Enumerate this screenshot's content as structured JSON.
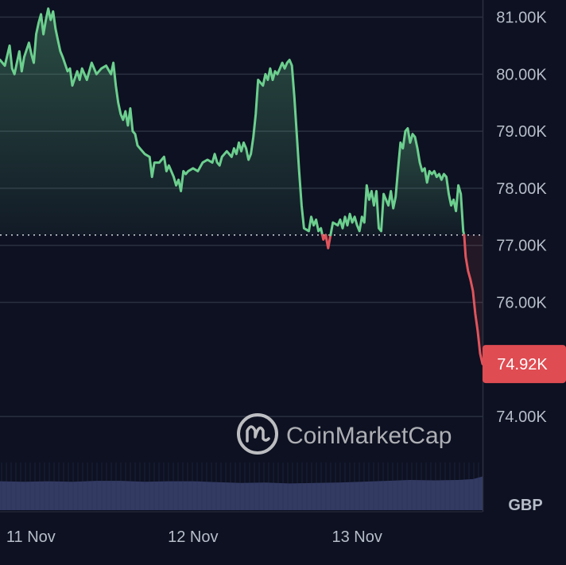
{
  "chart_data": {
    "type": "area",
    "currency": "GBP",
    "watermark": "CoinMarketCap",
    "y_tick_labels": [
      "81.00K",
      "80.00K",
      "79.00K",
      "78.00K",
      "77.00K",
      "76.00K",
      "74.00K"
    ],
    "y_tick_values": [
      81000,
      80000,
      79000,
      78000,
      77000,
      76000,
      74000
    ],
    "x_tick_labels": [
      "11 Nov",
      "12 Nov",
      "13 Nov"
    ],
    "ylim": [
      73500,
      81300
    ],
    "baseline": 77180,
    "current_price": 74920,
    "current_price_label": "74.92K",
    "colors": {
      "up": "#6ccf8e",
      "down": "#e0545c",
      "background": "#0d1121",
      "grid": "#2b3040",
      "volume": "#333b63",
      "price_tag": "#df4c52"
    },
    "price_series": {
      "name": "",
      "points": [
        [
          0.0,
          80250
        ],
        [
          0.01,
          80150
        ],
        [
          0.02,
          80500
        ],
        [
          0.025,
          80100
        ],
        [
          0.03,
          80000
        ],
        [
          0.04,
          80400
        ],
        [
          0.045,
          80050
        ],
        [
          0.05,
          80300
        ],
        [
          0.06,
          80550
        ],
        [
          0.065,
          80350
        ],
        [
          0.07,
          80200
        ],
        [
          0.075,
          80700
        ],
        [
          0.08,
          80900
        ],
        [
          0.085,
          81050
        ],
        [
          0.09,
          80700
        ],
        [
          0.095,
          80950
        ],
        [
          0.1,
          81150
        ],
        [
          0.105,
          80950
        ],
        [
          0.11,
          81100
        ],
        [
          0.115,
          80800
        ],
        [
          0.12,
          80600
        ],
        [
          0.125,
          80400
        ],
        [
          0.13,
          80300
        ],
        [
          0.14,
          80050
        ],
        [
          0.145,
          80100
        ],
        [
          0.15,
          79800
        ],
        [
          0.16,
          80050
        ],
        [
          0.165,
          79900
        ],
        [
          0.17,
          80100
        ],
        [
          0.18,
          79900
        ],
        [
          0.19,
          80200
        ],
        [
          0.2,
          80000
        ],
        [
          0.21,
          80100
        ],
        [
          0.22,
          80150
        ],
        [
          0.23,
          80000
        ],
        [
          0.235,
          80200
        ],
        [
          0.24,
          79800
        ],
        [
          0.245,
          79500
        ],
        [
          0.25,
          79300
        ],
        [
          0.255,
          79200
        ],
        [
          0.26,
          79350
        ],
        [
          0.265,
          79100
        ],
        [
          0.27,
          79400
        ],
        [
          0.275,
          79000
        ],
        [
          0.28,
          78950
        ],
        [
          0.285,
          78750
        ],
        [
          0.29,
          78700
        ],
        [
          0.3,
          78600
        ],
        [
          0.31,
          78550
        ],
        [
          0.315,
          78200
        ],
        [
          0.32,
          78450
        ],
        [
          0.33,
          78450
        ],
        [
          0.34,
          78550
        ],
        [
          0.345,
          78300
        ],
        [
          0.35,
          78400
        ],
        [
          0.36,
          78200
        ],
        [
          0.365,
          78050
        ],
        [
          0.37,
          78150
        ],
        [
          0.375,
          77950
        ],
        [
          0.38,
          78300
        ],
        [
          0.385,
          78250
        ],
        [
          0.39,
          78300
        ],
        [
          0.4,
          78350
        ],
        [
          0.41,
          78300
        ],
        [
          0.42,
          78450
        ],
        [
          0.43,
          78500
        ],
        [
          0.44,
          78450
        ],
        [
          0.445,
          78600
        ],
        [
          0.45,
          78450
        ],
        [
          0.455,
          78400
        ],
        [
          0.46,
          78550
        ],
        [
          0.47,
          78650
        ],
        [
          0.48,
          78550
        ],
        [
          0.485,
          78700
        ],
        [
          0.49,
          78600
        ],
        [
          0.495,
          78800
        ],
        [
          0.5,
          78650
        ],
        [
          0.505,
          78800
        ],
        [
          0.51,
          78700
        ],
        [
          0.515,
          78500
        ],
        [
          0.52,
          78600
        ],
        [
          0.525,
          78900
        ],
        [
          0.53,
          79300
        ],
        [
          0.535,
          79900
        ],
        [
          0.54,
          79850
        ],
        [
          0.545,
          79800
        ],
        [
          0.55,
          80000
        ],
        [
          0.555,
          79900
        ],
        [
          0.56,
          80100
        ],
        [
          0.565,
          79900
        ],
        [
          0.57,
          80050
        ],
        [
          0.575,
          80000
        ],
        [
          0.58,
          80100
        ],
        [
          0.585,
          80200
        ],
        [
          0.59,
          80100
        ],
        [
          0.595,
          80200
        ],
        [
          0.6,
          80250
        ],
        [
          0.605,
          80150
        ],
        [
          0.61,
          79600
        ],
        [
          0.615,
          78950
        ],
        [
          0.62,
          78300
        ],
        [
          0.625,
          77700
        ],
        [
          0.63,
          77300
        ],
        [
          0.64,
          77250
        ],
        [
          0.645,
          77500
        ],
        [
          0.65,
          77350
        ],
        [
          0.655,
          77450
        ],
        [
          0.66,
          77250
        ],
        [
          0.665,
          77300
        ],
        [
          0.67,
          77100
        ],
        [
          0.675,
          77180
        ],
        [
          0.68,
          76950
        ],
        [
          0.685,
          77180
        ],
        [
          0.69,
          77400
        ],
        [
          0.7,
          77350
        ],
        [
          0.705,
          77450
        ],
        [
          0.71,
          77300
        ],
        [
          0.715,
          77500
        ],
        [
          0.72,
          77350
        ],
        [
          0.725,
          77550
        ],
        [
          0.73,
          77400
        ],
        [
          0.735,
          77500
        ],
        [
          0.74,
          77350
        ],
        [
          0.745,
          77250
        ],
        [
          0.75,
          77500
        ],
        [
          0.755,
          77400
        ],
        [
          0.76,
          78050
        ],
        [
          0.765,
          77800
        ],
        [
          0.77,
          77950
        ],
        [
          0.775,
          77700
        ],
        [
          0.78,
          77950
        ],
        [
          0.785,
          77300
        ],
        [
          0.79,
          77250
        ],
        [
          0.795,
          77900
        ],
        [
          0.8,
          77800
        ],
        [
          0.805,
          77700
        ],
        [
          0.81,
          77950
        ],
        [
          0.815,
          77650
        ],
        [
          0.82,
          77850
        ],
        [
          0.825,
          78350
        ],
        [
          0.83,
          78800
        ],
        [
          0.835,
          78700
        ],
        [
          0.84,
          79000
        ],
        [
          0.845,
          79050
        ],
        [
          0.85,
          78800
        ],
        [
          0.855,
          78950
        ],
        [
          0.86,
          78900
        ],
        [
          0.865,
          78700
        ],
        [
          0.87,
          78450
        ],
        [
          0.875,
          78300
        ],
        [
          0.88,
          78350
        ],
        [
          0.885,
          78100
        ],
        [
          0.89,
          78300
        ],
        [
          0.895,
          78250
        ],
        [
          0.9,
          78300
        ],
        [
          0.905,
          78200
        ],
        [
          0.91,
          78250
        ],
        [
          0.915,
          78150
        ],
        [
          0.92,
          78250
        ],
        [
          0.925,
          78200
        ],
        [
          0.93,
          77900
        ],
        [
          0.935,
          77700
        ],
        [
          0.94,
          77800
        ],
        [
          0.945,
          77600
        ],
        [
          0.95,
          78050
        ],
        [
          0.955,
          77900
        ],
        [
          0.96,
          77250
        ],
        [
          0.962,
          77180
        ],
        [
          0.965,
          76800
        ],
        [
          0.97,
          76550
        ],
        [
          0.975,
          76400
        ],
        [
          0.98,
          76200
        ],
        [
          0.985,
          75800
        ],
        [
          0.99,
          75500
        ],
        [
          0.995,
          75100
        ],
        [
          1.0,
          74920
        ]
      ]
    },
    "volume_series": {
      "name": "",
      "min": 0,
      "max": 100,
      "points": [
        [
          0.0,
          55
        ],
        [
          0.05,
          54
        ],
        [
          0.1,
          55
        ],
        [
          0.15,
          54
        ],
        [
          0.2,
          56
        ],
        [
          0.25,
          56
        ],
        [
          0.3,
          54
        ],
        [
          0.35,
          55
        ],
        [
          0.4,
          55
        ],
        [
          0.45,
          53
        ],
        [
          0.5,
          51
        ],
        [
          0.55,
          52
        ],
        [
          0.6,
          50
        ],
        [
          0.65,
          51
        ],
        [
          0.7,
          52
        ],
        [
          0.75,
          54
        ],
        [
          0.8,
          56
        ],
        [
          0.85,
          58
        ],
        [
          0.9,
          57
        ],
        [
          0.95,
          58
        ],
        [
          0.98,
          60
        ],
        [
          1.0,
          66
        ]
      ]
    }
  }
}
